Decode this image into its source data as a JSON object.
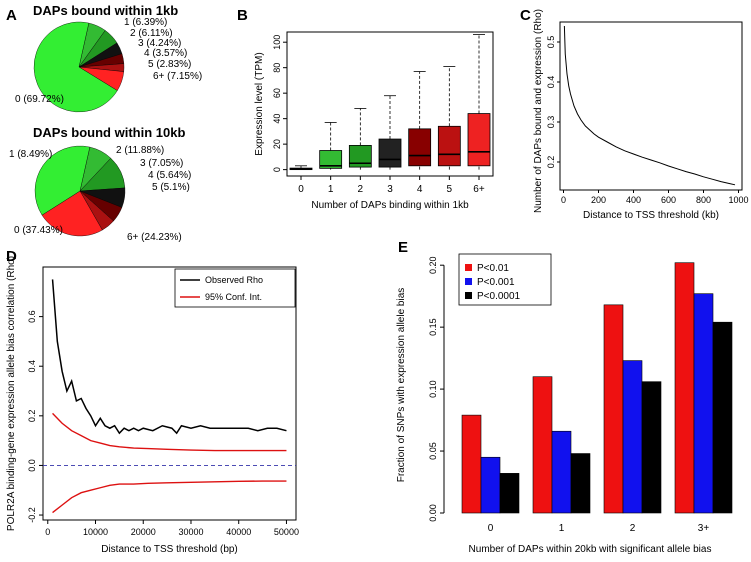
{
  "panel_letters": [
    "A",
    "B",
    "C",
    "D",
    "E"
  ],
  "chart_data": [
    {
      "type": "pie",
      "panel": "A",
      "title": "DAPs bound within 1kb",
      "labels": [
        "0 (69.72%)",
        "1 (6.39%)",
        "2 (6.11%)",
        "3 (4.24%)",
        "4 (3.57%)",
        "5 (2.83%)",
        "6+ (7.15%)"
      ],
      "values": [
        69.72,
        6.39,
        6.11,
        4.24,
        3.57,
        2.83,
        7.15
      ],
      "colors": [
        "#33ee33",
        "#33bb33",
        "#229922",
        "#111111",
        "#660000",
        "#aa1111",
        "#ff2222"
      ]
    },
    {
      "type": "pie",
      "panel": "A",
      "title": "DAPs bound within 10kb",
      "labels": [
        "0 (37.43%)",
        "1 (8.49%)",
        "2 (11.88%)",
        "3 (7.05%)",
        "4 (5.64%)",
        "5 (5.1%)",
        "6+ (24.23%)"
      ],
      "values": [
        37.43,
        8.49,
        11.88,
        7.05,
        5.64,
        5.1,
        24.23
      ],
      "colors": [
        "#33ee33",
        "#33bb33",
        "#229922",
        "#111111",
        "#660000",
        "#aa1111",
        "#ff2222"
      ]
    },
    {
      "type": "box",
      "panel": "B",
      "xlabel": "Number of DAPs binding within 1kb",
      "ylabel": "Expression level (TPM)",
      "ylim": [
        -5,
        108
      ],
      "yticks": [
        0,
        20,
        40,
        60,
        80,
        100
      ],
      "categories": [
        "0",
        "1",
        "2",
        "3",
        "4",
        "5",
        "6+"
      ],
      "colors": [
        "#111111",
        "#33bb33",
        "#229922",
        "#222222",
        "#880000",
        "#bb1111",
        "#ee2222"
      ],
      "boxes": [
        {
          "whisker_low": 0,
          "q1": 0,
          "median": 0.3,
          "q3": 1.2,
          "whisker_high": 3
        },
        {
          "whisker_low": 0,
          "q1": 1,
          "median": 3,
          "q3": 15,
          "whisker_high": 37
        },
        {
          "whisker_low": 0,
          "q1": 2,
          "median": 5,
          "q3": 19,
          "whisker_high": 48
        },
        {
          "whisker_low": 0,
          "q1": 2,
          "median": 8,
          "q3": 24,
          "whisker_high": 58
        },
        {
          "whisker_low": 0,
          "q1": 3,
          "median": 11,
          "q3": 32,
          "whisker_high": 77
        },
        {
          "whisker_low": 0,
          "q1": 3,
          "median": 12,
          "q3": 34,
          "whisker_high": 81
        },
        {
          "whisker_low": 0,
          "q1": 3,
          "median": 14,
          "q3": 44,
          "whisker_high": 106
        }
      ]
    },
    {
      "type": "line",
      "panel": "C",
      "xlabel": "Distance to TSS threshold (kb)",
      "ylabel": "Number of DAPs bound and expression (Rho)",
      "xlim": [
        0,
        1000
      ],
      "ylim": [
        0.13,
        0.55
      ],
      "xticks": [
        0,
        200,
        400,
        600,
        800,
        1000
      ],
      "yticks": [
        0.2,
        0.3,
        0.4,
        0.5
      ],
      "x": [
        5,
        10,
        20,
        30,
        40,
        50,
        60,
        80,
        100,
        125,
        150,
        175,
        200,
        250,
        300,
        350,
        400,
        450,
        500,
        550,
        600,
        650,
        700,
        750,
        800,
        850,
        900,
        950,
        980
      ],
      "y": [
        0.54,
        0.47,
        0.42,
        0.39,
        0.37,
        0.355,
        0.34,
        0.32,
        0.305,
        0.29,
        0.28,
        0.27,
        0.262,
        0.25,
        0.238,
        0.228,
        0.22,
        0.212,
        0.205,
        0.198,
        0.19,
        0.183,
        0.176,
        0.17,
        0.163,
        0.157,
        0.151,
        0.146,
        0.143
      ]
    },
    {
      "type": "line",
      "panel": "D",
      "xlabel": "Distance to TSS threshold (bp)",
      "ylabel": "POLR2A binding-gene expression allele bias correlation (Rho)",
      "xlim": [
        0,
        51000
      ],
      "ylim": [
        -0.22,
        0.8
      ],
      "xticks": [
        0,
        10000,
        20000,
        30000,
        40000,
        50000
      ],
      "yticks": [
        -0.2,
        0.0,
        0.2,
        0.4,
        0.6
      ],
      "legend": [
        "Observed Rho",
        "95% Conf. Int."
      ],
      "reference_line": 0.0,
      "series": [
        {
          "name": "Observed Rho",
          "color": "#000000",
          "x": [
            1000,
            2000,
            3000,
            4000,
            5000,
            6000,
            7000,
            8000,
            9000,
            10000,
            11000,
            12000,
            13000,
            14000,
            15000,
            16000,
            17000,
            18000,
            19000,
            20000,
            22000,
            24000,
            26000,
            27000,
            28000,
            30000,
            32000,
            34000,
            36000,
            38000,
            40000,
            42000,
            44000,
            46000,
            48000,
            50000
          ],
          "y": [
            0.75,
            0.5,
            0.38,
            0.3,
            0.34,
            0.26,
            0.27,
            0.23,
            0.2,
            0.16,
            0.19,
            0.16,
            0.15,
            0.16,
            0.13,
            0.15,
            0.14,
            0.15,
            0.14,
            0.15,
            0.14,
            0.16,
            0.15,
            0.13,
            0.16,
            0.15,
            0.16,
            0.15,
            0.15,
            0.15,
            0.15,
            0.15,
            0.14,
            0.15,
            0.15,
            0.14
          ]
        },
        {
          "name": "95% Conf. Int. upper",
          "color": "#dd1111",
          "x": [
            1000,
            3000,
            5000,
            7000,
            9000,
            11000,
            13000,
            15000,
            18000,
            21000,
            25000,
            30000,
            35000,
            40000,
            45000,
            50000
          ],
          "y": [
            0.21,
            0.17,
            0.14,
            0.12,
            0.1,
            0.09,
            0.08,
            0.075,
            0.07,
            0.068,
            0.065,
            0.062,
            0.06,
            0.06,
            0.06,
            0.06
          ]
        },
        {
          "name": "95% Conf. Int. lower",
          "color": "#dd1111",
          "x": [
            1000,
            3000,
            5000,
            7000,
            9000,
            11000,
            13000,
            15000,
            18000,
            21000,
            25000,
            30000,
            35000,
            40000,
            45000,
            50000
          ],
          "y": [
            -0.19,
            -0.16,
            -0.13,
            -0.11,
            -0.1,
            -0.09,
            -0.08,
            -0.075,
            -0.075,
            -0.072,
            -0.07,
            -0.068,
            -0.066,
            -0.064,
            -0.063,
            -0.063
          ]
        }
      ]
    },
    {
      "type": "bar",
      "panel": "E",
      "xlabel": "Number of DAPs within 20kb with significant allele bias",
      "ylabel": "Fraction of SNPs with expression allele bias",
      "ylim": [
        0,
        0.205
      ],
      "yticks": [
        0.0,
        0.05,
        0.1,
        0.15,
        0.2
      ],
      "ytick_labels": [
        "0.00",
        "0.05",
        "0.10",
        "0.15",
        "0.20"
      ],
      "categories": [
        "0",
        "1",
        "2",
        "3+"
      ],
      "series": [
        {
          "name": "P<0.01",
          "color": "#ee1111",
          "values": [
            0.079,
            0.11,
            0.168,
            0.202
          ]
        },
        {
          "name": "P<0.001",
          "color": "#1111ee",
          "values": [
            0.045,
            0.066,
            0.123,
            0.177
          ]
        },
        {
          "name": "P<0.0001",
          "color": "#000000",
          "values": [
            0.032,
            0.048,
            0.106,
            0.154
          ]
        }
      ]
    }
  ]
}
